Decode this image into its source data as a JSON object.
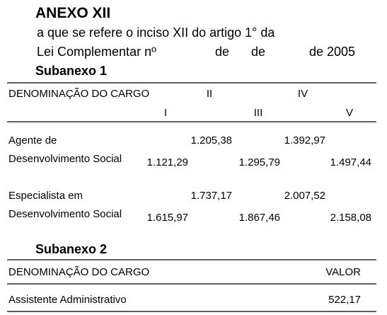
{
  "header": {
    "title": "ANEXO XII",
    "reference": "a que se refere o inciso XII do artigo 1° da",
    "law_parts": [
      "Lei Complementar nº",
      "de",
      "de",
      "de 2005"
    ]
  },
  "subanexo1": {
    "title": "Subanexo 1",
    "columns": [
      "DENOMINAÇÃO DO CARGO",
      "I",
      "II",
      "III",
      "IV",
      "V"
    ],
    "rows": [
      {
        "cargo": [
          "Agente de",
          "Desenvolvimento Social"
        ],
        "values": [
          "1.121,29",
          "1.205,38",
          "1.295,79",
          "1.392,97",
          "1.497,44"
        ]
      },
      {
        "cargo": [
          "Especialista em",
          "Desenvolvimento Social"
        ],
        "values": [
          "1.615,97",
          "1.737,17",
          "1.867,46",
          "2.007,52",
          "2.158,08"
        ]
      }
    ]
  },
  "subanexo2": {
    "title": "Subanexo 2",
    "columns": [
      "DENOMINAÇÃO DO CARGO",
      "VALOR"
    ],
    "rows": [
      [
        "Assistente Administrativo",
        "522,17"
      ]
    ]
  }
}
